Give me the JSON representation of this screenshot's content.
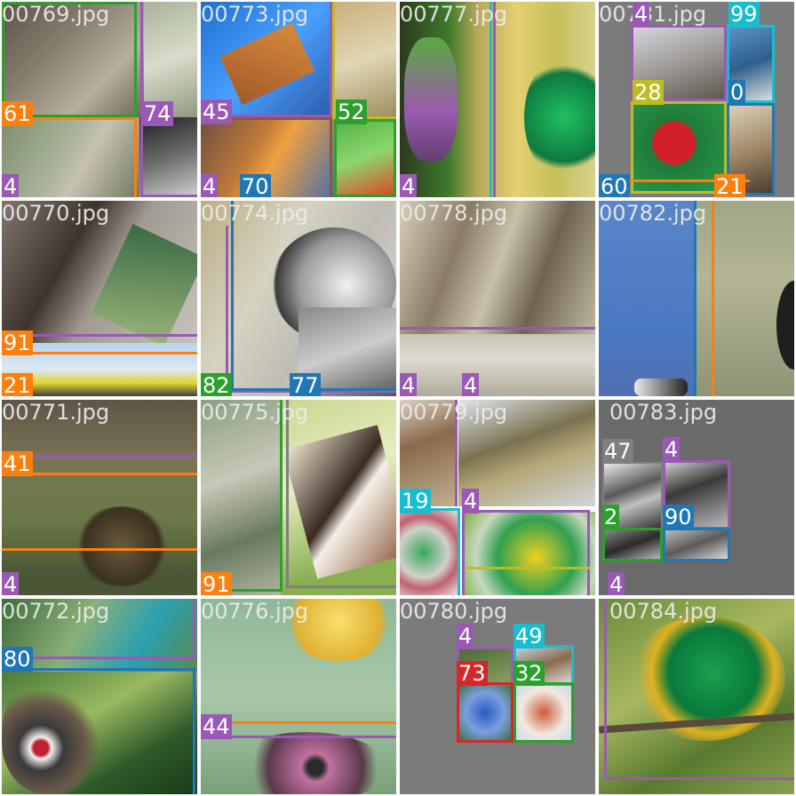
{
  "colors": {
    "purple": "#9b59b6",
    "orange": "#ff7f0e",
    "green": "#2ca02c",
    "blue": "#1f77b4",
    "cyan": "#17becf",
    "olive": "#bcbd22",
    "red": "#d62728",
    "brown": "#8c564b",
    "gray": "#7f7f7f"
  },
  "tiles": [
    {
      "filename": "00769.jpg",
      "scene": "bird-photo-mosaic",
      "labels": [
        "61",
        "74",
        "4"
      ]
    },
    {
      "filename": "00773.jpg",
      "scene": "bird-photo-mosaic",
      "labels": [
        "45",
        "52",
        "4",
        "70"
      ]
    },
    {
      "filename": "00777.jpg",
      "scene": "bird-closeup-green-feathers",
      "labels": [
        "4"
      ]
    },
    {
      "filename": "00781.jpg",
      "scene": "bird-photo-mosaic",
      "labels": [
        "4",
        "99",
        "28",
        "0",
        "60",
        "21"
      ]
    },
    {
      "filename": "00770.jpg",
      "scene": "bird-on-branch",
      "labels": [
        "91",
        "21"
      ]
    },
    {
      "filename": "00774.jpg",
      "scene": "gray-bird-perched",
      "labels": [
        "82",
        "77"
      ]
    },
    {
      "filename": "00778.jpg",
      "scene": "bird-closeup-feathers",
      "labels": [
        "4",
        "4"
      ]
    },
    {
      "filename": "00782.jpg",
      "scene": "blue-sky-grass",
      "labels": []
    },
    {
      "filename": "00771.jpg",
      "scene": "bird-in-grass",
      "labels": [
        "41",
        "4"
      ]
    },
    {
      "filename": "00775.jpg",
      "scene": "bird-on-tree-trunk",
      "labels": [
        "91"
      ]
    },
    {
      "filename": "00779.jpg",
      "scene": "bird-photo-mosaic",
      "labels": [
        "19",
        "4"
      ]
    },
    {
      "filename": "00783.jpg",
      "scene": "grayscale-mosaic",
      "labels": [
        "47",
        "4",
        "2",
        "90",
        "4"
      ]
    },
    {
      "filename": "00772.jpg",
      "scene": "pheasant-in-foliage",
      "labels": [
        "80"
      ]
    },
    {
      "filename": "00776.jpg",
      "scene": "yellow-bird-and-pink-bird",
      "labels": [
        "44"
      ]
    },
    {
      "filename": "00780.jpg",
      "scene": "small-mosaic-gray",
      "labels": [
        "4",
        "49",
        "73",
        "32"
      ]
    },
    {
      "filename": "00784.jpg",
      "scene": "green-bird-perched",
      "labels": []
    }
  ]
}
